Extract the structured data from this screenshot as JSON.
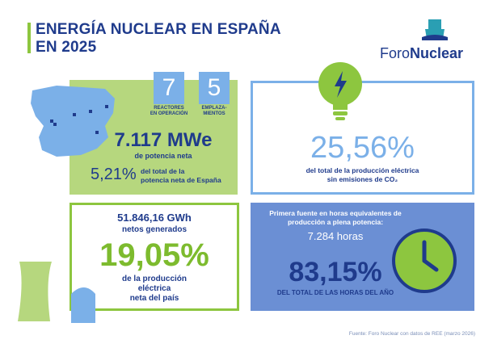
{
  "title": {
    "line1": "ENERGÍA NUCLEAR EN ESPAÑA",
    "line2": "EN 2025"
  },
  "logo": {
    "part1": "Foro",
    "part2": "Nuclear"
  },
  "reactors": {
    "value": "7",
    "label_line1": "REACTORES",
    "label_line2": "EN OPERACIÓN"
  },
  "sites": {
    "value": "5",
    "label_line1": "EMPLAZA-",
    "label_line2": "MIENTOS"
  },
  "power": {
    "value": "7.117 MWe",
    "label": "de potencia neta",
    "share_value": "5,21%",
    "share_label_line1": "del total de la",
    "share_label_line2": "potencia neta de España"
  },
  "emissions": {
    "value": "25,56%",
    "label_line1": "del total de la producción eléctrica",
    "label_line2": "sin emisiones de CO₂"
  },
  "generation": {
    "value": "51.846,16 GWh",
    "label": "netos generados",
    "share_value": "19,05%",
    "share_label_line1": "de la producción",
    "share_label_line2": "eléctrica",
    "share_label_line3": "neta del país"
  },
  "hours": {
    "intro_line1": "Primera fuente en horas equivalentes de",
    "intro_line2": "producción a plena potencia:",
    "value": "7.284 horas",
    "share_value": "83,15%",
    "share_label": "DEL TOTAL DE LAS HORAS DEL AÑO"
  },
  "source": "Fuente: Foro Nuclear con datos de REE (marzo 2026)",
  "colors": {
    "navy": "#1f3b8c",
    "green": "#8dc63f",
    "light_green": "#b6d77e",
    "light_blue": "#7bb0e8",
    "mid_blue": "#6b8fd4"
  }
}
